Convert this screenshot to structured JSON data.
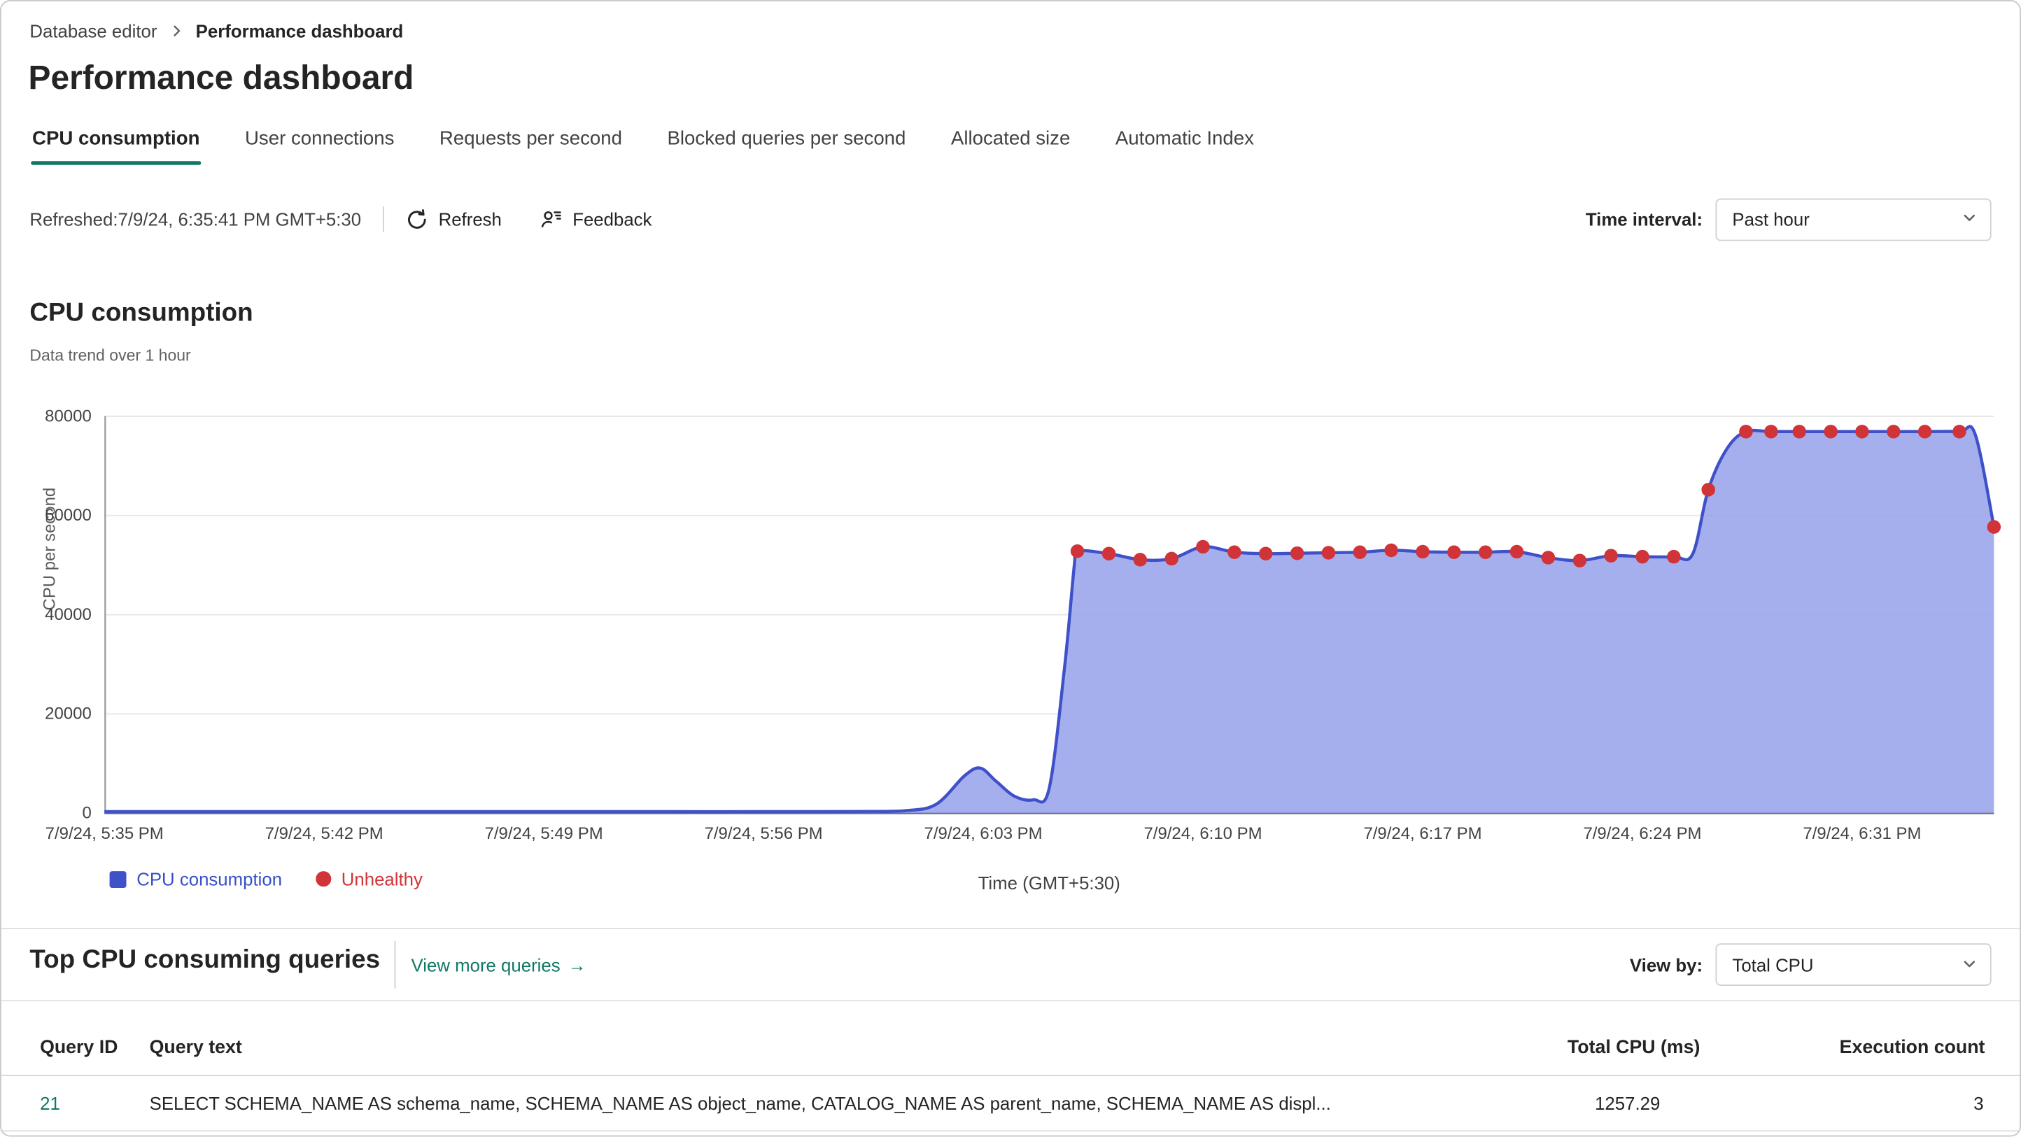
{
  "breadcrumb": {
    "items": [
      {
        "label": "Database editor"
      },
      {
        "label": "Performance dashboard"
      }
    ]
  },
  "page": {
    "title": "Performance dashboard"
  },
  "tabs": [
    {
      "label": "CPU consumption",
      "active": true
    },
    {
      "label": "User connections",
      "active": false
    },
    {
      "label": "Requests per second",
      "active": false
    },
    {
      "label": "Blocked queries per second",
      "active": false
    },
    {
      "label": "Allocated size",
      "active": false
    },
    {
      "label": "Automatic Index",
      "active": false
    }
  ],
  "toolbar": {
    "refreshed_text": "Refreshed:7/9/24, 6:35:41 PM GMT+5:30",
    "refresh_label": "Refresh",
    "feedback_label": "Feedback",
    "time_interval_label": "Time interval:",
    "time_interval_value": "Past hour"
  },
  "icons": {
    "breadcrumb_chevron": "chevron-right",
    "refresh": "circular-arrow",
    "feedback": "person-feedback",
    "dropdown": "chevron-down",
    "link_arrow": "→"
  },
  "section": {
    "title": "CPU consumption",
    "subtitle": "Data trend over 1 hour"
  },
  "chart_data": {
    "type": "area",
    "title": "CPU consumption",
    "subtitle": "Data trend over 1 hour",
    "xlabel": "Time (GMT+5:30)",
    "ylabel": "CPU per second",
    "ylim": [
      0,
      80000
    ],
    "yticks": [
      0,
      20000,
      40000,
      60000,
      80000
    ],
    "ytick_labels": [
      "0",
      "20000",
      "40000",
      "60000",
      "80000"
    ],
    "grid": true,
    "legend_position": "bottom-left",
    "t_max": 60.2,
    "x_unit": "minutes after 5:35 PM",
    "xticks": [
      {
        "t": 0,
        "label": "7/9/24, 5:35 PM"
      },
      {
        "t": 7,
        "label": "7/9/24, 5:42 PM"
      },
      {
        "t": 14,
        "label": "7/9/24, 5:49 PM"
      },
      {
        "t": 21,
        "label": "7/9/24, 5:56 PM"
      },
      {
        "t": 28,
        "label": "7/9/24, 6:03 PM"
      },
      {
        "t": 35,
        "label": "7/9/24, 6:10 PM"
      },
      {
        "t": 42,
        "label": "7/9/24, 6:17 PM"
      },
      {
        "t": 49,
        "label": "7/9/24, 6:24 PM"
      },
      {
        "t": 56,
        "label": "7/9/24, 6:31 PM"
      }
    ],
    "series": [
      {
        "name": "CPU consumption",
        "points": [
          [
            0,
            300
          ],
          [
            3,
            300
          ],
          [
            6,
            300
          ],
          [
            9,
            300
          ],
          [
            12,
            300
          ],
          [
            15,
            300
          ],
          [
            18,
            300
          ],
          [
            21,
            300
          ],
          [
            24,
            350
          ],
          [
            25.5,
            500
          ],
          [
            26.5,
            1800
          ],
          [
            27.4,
            7500
          ],
          [
            27.9,
            9100
          ],
          [
            28.4,
            6500
          ],
          [
            29,
            3400
          ],
          [
            29.6,
            2700
          ],
          [
            30.1,
            5000
          ],
          [
            30.6,
            30000
          ],
          [
            30.9,
            50000
          ],
          [
            31,
            52800
          ],
          [
            32,
            52300
          ],
          [
            33,
            51100
          ],
          [
            34,
            51300
          ],
          [
            35,
            53700
          ],
          [
            36,
            52600
          ],
          [
            37,
            52300
          ],
          [
            38,
            52400
          ],
          [
            39,
            52500
          ],
          [
            40,
            52600
          ],
          [
            41,
            53000
          ],
          [
            42,
            52700
          ],
          [
            43,
            52600
          ],
          [
            44,
            52600
          ],
          [
            45,
            52700
          ],
          [
            46,
            51500
          ],
          [
            47,
            50900
          ],
          [
            48,
            51900
          ],
          [
            49,
            51700
          ],
          [
            50,
            51700
          ],
          [
            50.6,
            52200
          ],
          [
            51.1,
            65200
          ],
          [
            51.7,
            73500
          ],
          [
            52.3,
            76900
          ],
          [
            53.1,
            76900
          ],
          [
            54,
            76900
          ],
          [
            55,
            76900
          ],
          [
            56,
            76900
          ],
          [
            57,
            76900
          ],
          [
            58,
            76900
          ],
          [
            59.1,
            76900
          ],
          [
            59.6,
            76400
          ],
          [
            60.2,
            57700
          ]
        ]
      }
    ],
    "unhealthy_points": [
      [
        31,
        52800
      ],
      [
        32,
        52300
      ],
      [
        33,
        51100
      ],
      [
        34,
        51300
      ],
      [
        35,
        53700
      ],
      [
        36,
        52600
      ],
      [
        37,
        52300
      ],
      [
        38,
        52400
      ],
      [
        39,
        52500
      ],
      [
        40,
        52600
      ],
      [
        41,
        53000
      ],
      [
        42,
        52700
      ],
      [
        43,
        52600
      ],
      [
        44,
        52600
      ],
      [
        45,
        52700
      ],
      [
        46,
        51500
      ],
      [
        47,
        50900
      ],
      [
        48,
        51900
      ],
      [
        49,
        51700
      ],
      [
        50,
        51700
      ],
      [
        51.1,
        65200
      ],
      [
        52.3,
        76900
      ],
      [
        53.1,
        76900
      ],
      [
        54,
        76900
      ],
      [
        55,
        76900
      ],
      [
        56,
        76900
      ],
      [
        57,
        76900
      ],
      [
        58,
        76900
      ],
      [
        59.1,
        76900
      ],
      [
        60.2,
        57700
      ]
    ],
    "legend": [
      {
        "label": "CPU consumption",
        "color": "#3f51c9",
        "marker": "square"
      },
      {
        "label": "Unhealthy",
        "color": "#d13438",
        "marker": "circle"
      }
    ],
    "colors": {
      "line": "#3f51c9",
      "fill": "#96a1ea",
      "unhealthy": "#d13438",
      "grid": "#e6e6e6",
      "axis_line": "#616161",
      "left_axis": "#9a9a9a",
      "accent": "#117865"
    }
  },
  "queries_section": {
    "title": "Top CPU consuming queries",
    "link": "View more queries",
    "link_arrow": "→",
    "view_by_label": "View by:",
    "view_by_value": "Total CPU",
    "table": {
      "columns": [
        "Query ID",
        "Query text",
        "Total CPU (ms)",
        "Execution count"
      ],
      "rows": [
        {
          "query_id": "21",
          "query_text": "SELECT SCHEMA_NAME AS schema_name, SCHEMA_NAME AS object_name, CATALOG_NAME AS parent_name, SCHEMA_NAME AS displ...",
          "total_cpu_ms": "1257.29",
          "execution_count": "3"
        }
      ]
    }
  }
}
